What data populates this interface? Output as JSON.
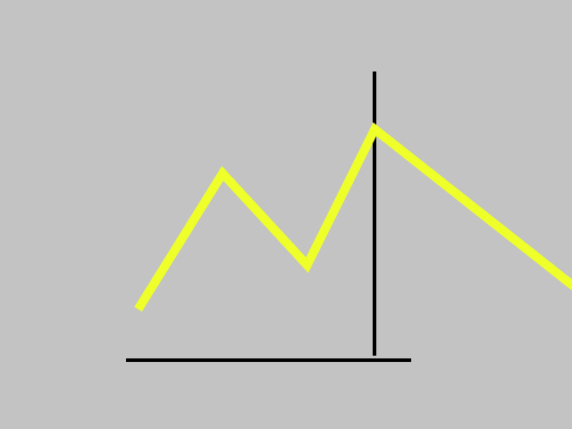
{
  "colors": {
    "background": "#c3c3c3",
    "axis": "#000000",
    "line": "#eeff2a"
  },
  "chart_data": {
    "type": "line",
    "title": "",
    "xlabel": "",
    "ylabel": "",
    "grid": false,
    "legend": "none",
    "series": [
      {
        "values": [
          {
            "x": 0.5,
            "y": 0.75
          },
          {
            "x": 1.5,
            "y": 2.75
          },
          {
            "x": 2.5,
            "y": 1.4
          },
          {
            "x": 3.3,
            "y": 3.4
          },
          {
            "x": 6.0,
            "y": 0.75
          }
        ]
      }
    ],
    "xlim": [
      -0.5,
      5.0
    ],
    "ylim": [
      -0.75,
      5.0
    ]
  }
}
